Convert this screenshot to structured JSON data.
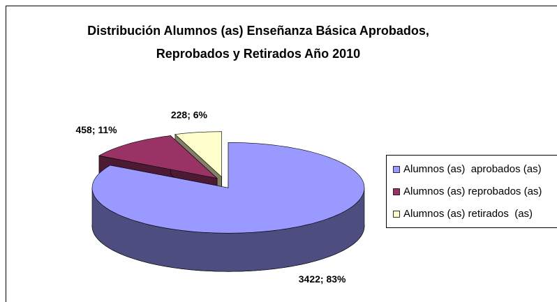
{
  "chart_data": {
    "type": "pie",
    "title": "Distribución Alumnos (as) Enseñanza Básica Aprobados, Reprobados y Retirados Año 2010",
    "categories": [
      "Alumnos (as)  aprobados (as)",
      "Alumnos (as) reprobados (as)",
      "Alumnos (as) retirados  (as)"
    ],
    "values": [
      3422,
      458,
      228
    ],
    "value_labels": [
      "3422; 83%",
      "458; 11%",
      "228; 6%"
    ],
    "colors": [
      "#9999ff",
      "#993366",
      "#ffffcc"
    ],
    "legend": "right"
  }
}
